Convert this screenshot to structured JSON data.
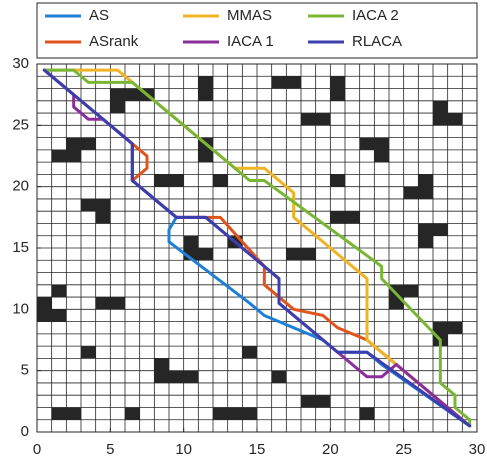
{
  "chart_data": {
    "type": "line",
    "xlim": [
      0,
      30
    ],
    "ylim": [
      0,
      30
    ],
    "xticks": [
      0,
      5,
      10,
      15,
      20,
      25,
      30
    ],
    "yticks": [
      0,
      5,
      10,
      15,
      20,
      25,
      30
    ],
    "obstacles": [
      [
        11,
        28
      ],
      [
        11,
        27
      ],
      [
        16,
        28
      ],
      [
        17,
        28
      ],
      [
        20,
        28
      ],
      [
        20,
        27
      ],
      [
        5,
        27
      ],
      [
        6,
        27
      ],
      [
        7,
        27
      ],
      [
        5,
        26
      ],
      [
        19,
        25
      ],
      [
        18,
        25
      ],
      [
        27,
        26
      ],
      [
        27,
        25
      ],
      [
        28,
        25
      ],
      [
        2,
        23
      ],
      [
        2,
        22
      ],
      [
        1,
        22
      ],
      [
        3,
        23
      ],
      [
        11,
        23
      ],
      [
        11,
        22
      ],
      [
        22,
        23
      ],
      [
        23,
        23
      ],
      [
        23,
        22
      ],
      [
        8,
        20
      ],
      [
        9,
        20
      ],
      [
        20,
        20
      ],
      [
        12,
        20
      ],
      [
        25,
        19
      ],
      [
        26,
        19
      ],
      [
        26,
        20
      ],
      [
        3,
        18
      ],
      [
        4,
        18
      ],
      [
        4,
        17
      ],
      [
        20,
        17
      ],
      [
        21,
        17
      ],
      [
        10,
        15
      ],
      [
        10,
        14
      ],
      [
        11,
        14
      ],
      [
        13,
        15
      ],
      [
        26,
        16
      ],
      [
        27,
        16
      ],
      [
        26,
        15
      ],
      [
        1,
        11
      ],
      [
        0,
        10
      ],
      [
        0,
        9
      ],
      [
        1,
        9
      ],
      [
        4,
        10
      ],
      [
        5,
        10
      ],
      [
        24,
        11
      ],
      [
        25,
        11
      ],
      [
        24,
        10
      ],
      [
        27,
        8
      ],
      [
        28,
        8
      ],
      [
        27,
        7
      ],
      [
        14,
        6
      ],
      [
        8,
        5
      ],
      [
        8,
        4
      ],
      [
        9,
        4
      ],
      [
        10,
        4
      ],
      [
        18,
        2
      ],
      [
        19,
        2
      ],
      [
        1,
        1
      ],
      [
        2,
        1
      ],
      [
        6,
        1
      ],
      [
        12,
        1
      ],
      [
        13,
        1
      ],
      [
        14,
        1
      ],
      [
        16,
        4
      ],
      [
        22,
        1
      ],
      [
        3,
        6
      ],
      [
        17,
        14
      ],
      [
        18,
        14
      ]
    ],
    "series": [
      {
        "name": "AS",
        "color": "#1f7fd6",
        "x": [
          0.5,
          6.5,
          6.5,
          9.5,
          9,
          9,
          14.5,
          15.5,
          17.5,
          19.5,
          20.5,
          22.5,
          23.5,
          29.5
        ],
        "y": [
          29.5,
          23.5,
          20.5,
          17.5,
          16.5,
          15.5,
          10.5,
          9.5,
          8.5,
          7.5,
          6.5,
          6.5,
          5.5,
          0.5
        ]
      },
      {
        "name": "ASrank",
        "color": "#e0541c",
        "x": [
          0.5,
          6.5,
          7.5,
          7.5,
          6.5,
          9.5,
          12.5,
          15.5,
          15.5,
          17.5,
          19.5,
          20.5,
          22.5,
          24.5,
          29.5
        ],
        "y": [
          29.5,
          23.5,
          22.5,
          21.5,
          20.5,
          17.5,
          17.5,
          13.5,
          12,
          10,
          9.5,
          8.5,
          7.5,
          5.5,
          0.5
        ]
      },
      {
        "name": "MMAS",
        "color": "#f0b323",
        "x": [
          0.5,
          2,
          5.5,
          6.5,
          13.5,
          15.5,
          17.5,
          17.5,
          22.5,
          22.5,
          24.5,
          29.5
        ],
        "y": [
          29.5,
          29.5,
          29.5,
          28.5,
          21.5,
          21.5,
          19.5,
          17.5,
          12.5,
          7.5,
          5.5,
          0.5
        ]
      },
      {
        "name": "IACA 1",
        "color": "#8a2f9a",
        "x": [
          0.5,
          2.5,
          2.5,
          3.5,
          4.5,
          6.5,
          6.5,
          9.5,
          11.5,
          12.5,
          15.5,
          16.5,
          16.5,
          21.5,
          22.5,
          23.5,
          24.5,
          29.5
        ],
        "y": [
          29.5,
          27.5,
          26.5,
          25.5,
          25.5,
          23.5,
          20.5,
          17.5,
          17.5,
          16.5,
          13.5,
          12.5,
          10.5,
          5.5,
          4.5,
          4.5,
          5.5,
          0.5
        ]
      },
      {
        "name": "IACA 2",
        "color": "#78b634",
        "x": [
          0.5,
          2.5,
          3.5,
          6.5,
          13.5,
          14.5,
          15.5,
          23.5,
          23.5,
          27.5,
          27.5,
          28.5,
          28.5,
          29.5,
          29.5
        ],
        "y": [
          29.5,
          29.5,
          28.5,
          28.5,
          21.5,
          20.5,
          20.5,
          13.5,
          12.5,
          7.5,
          4,
          3,
          2,
          1,
          0.5
        ]
      },
      {
        "name": "RLACA",
        "color": "#3b3fae",
        "x": [
          0.5,
          6.5,
          6.5,
          9.5,
          11.5,
          15.5,
          16.5,
          16.5,
          20.5,
          22.5,
          29.5
        ],
        "y": [
          29.5,
          23.5,
          20.5,
          17.5,
          17.5,
          13.5,
          12.5,
          10.5,
          6.5,
          6.5,
          0.5
        ]
      }
    ]
  }
}
